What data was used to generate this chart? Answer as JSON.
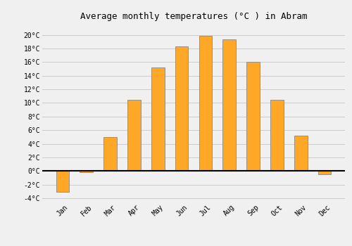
{
  "title": "Average monthly temperatures (°C ) in Abram",
  "months": [
    "Jan",
    "Feb",
    "Mar",
    "Apr",
    "May",
    "Jun",
    "Jul",
    "Aug",
    "Sep",
    "Oct",
    "Nov",
    "Dec"
  ],
  "values": [
    -3.1,
    -0.2,
    5.0,
    10.5,
    15.2,
    18.3,
    19.8,
    19.3,
    16.0,
    10.5,
    5.2,
    -0.5
  ],
  "bar_color": "#FFA726",
  "bar_edge_color": "#888888",
  "ylim": [
    -4.5,
    21.5
  ],
  "yticks": [
    -4,
    -2,
    0,
    2,
    4,
    6,
    8,
    10,
    12,
    14,
    16,
    18,
    20
  ],
  "background_color": "#f0f0f0",
  "grid_color": "#cccccc",
  "title_fontsize": 9,
  "tick_fontsize": 7,
  "font_family": "monospace",
  "bar_width": 0.55
}
